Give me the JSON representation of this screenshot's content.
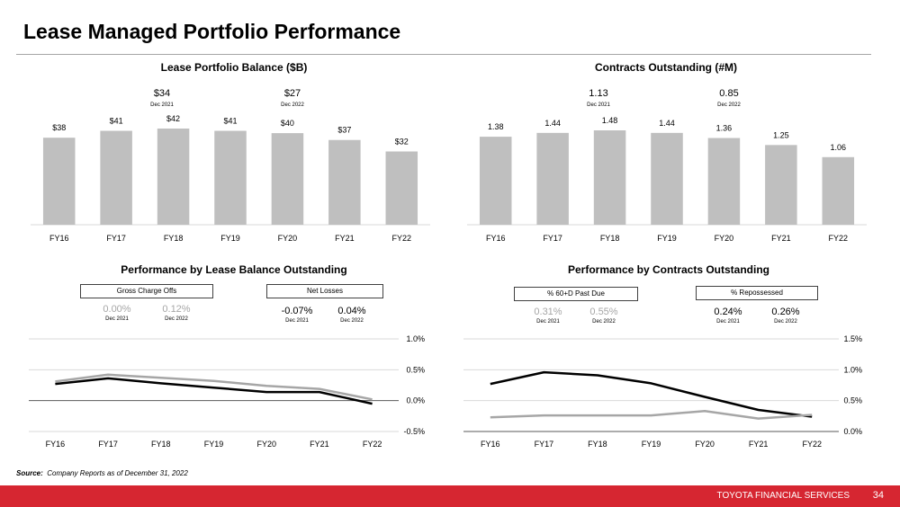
{
  "page": {
    "title": "Lease Managed Portfolio Performance",
    "source_label": "Source:",
    "source_text": "Company Reports as of December 31, 2022",
    "brand": "TOYOTA FINANCIAL SERVICES",
    "page_number": "34"
  },
  "colors": {
    "bar": "#bfbfbf",
    "line_black": "#000000",
    "line_gray": "#a6a6a6",
    "accent_red": "#d62631",
    "grid": "#d9d9d9"
  },
  "callouts": {
    "balance": [
      {
        "value": "$34",
        "period": "Dec 2021"
      },
      {
        "value": "$27",
        "period": "Dec 2022"
      }
    ],
    "contracts": [
      {
        "value": "1.13",
        "period": "Dec 2021"
      },
      {
        "value": "0.85",
        "period": "Dec 2022"
      }
    ],
    "gross_charge_offs": {
      "label": "Gross Charge Offs",
      "v2021": "0.00%",
      "p2021": "Dec 2021",
      "v2022": "0.12%",
      "p2022": "Dec 2022"
    },
    "net_losses": {
      "label": "Net Losses",
      "v2021": "-0.07%",
      "p2021": "Dec 2021",
      "v2022": "0.04%",
      "p2022": "Dec 2022"
    },
    "past_due": {
      "label": "% 60+D Past Due",
      "v2021": "0.31%",
      "p2021": "Dec 2021",
      "v2022": "0.55%",
      "p2022": "Dec 2022"
    },
    "repossessed": {
      "label": "% Repossessed",
      "v2021": "0.24%",
      "p2021": "Dec 2021",
      "v2022": "0.26%",
      "p2022": "Dec 2022"
    }
  },
  "chart_data": [
    {
      "id": "balance",
      "type": "bar",
      "title": "Lease Portfolio Balance ($B)",
      "categories": [
        "FY16",
        "FY17",
        "FY18",
        "FY19",
        "FY20",
        "FY21",
        "FY22"
      ],
      "values": [
        38,
        41,
        42,
        41,
        40,
        37,
        32
      ],
      "value_labels": [
        "$38",
        "$41",
        "$42",
        "$41",
        "$40",
        "$37",
        "$32"
      ],
      "ylim": [
        0,
        42
      ]
    },
    {
      "id": "contracts",
      "type": "bar",
      "title": "Contracts Outstanding (#M)",
      "categories": [
        "FY16",
        "FY17",
        "FY18",
        "FY19",
        "FY20",
        "FY21",
        "FY22"
      ],
      "values": [
        1.38,
        1.44,
        1.48,
        1.44,
        1.36,
        1.25,
        1.06
      ],
      "value_labels": [
        "1.38",
        "1.44",
        "1.48",
        "1.44",
        "1.36",
        "1.25",
        "1.06"
      ],
      "ylim": [
        0,
        1.48
      ]
    },
    {
      "id": "lease_perf",
      "type": "line",
      "title": "Performance by  Lease Balance Outstanding",
      "categories": [
        "FY16",
        "FY17",
        "FY18",
        "FY19",
        "FY20",
        "FY21",
        "FY22"
      ],
      "ylim": [
        -0.5,
        1.0
      ],
      "yticks": [
        "1.0%",
        "0.5%",
        "0.0%",
        "-0.5%"
      ],
      "series": [
        {
          "name": "Gross Charge Offs",
          "color": "#a6a6a6",
          "values": [
            0.31,
            0.42,
            0.37,
            0.32,
            0.24,
            0.19,
            0.02
          ]
        },
        {
          "name": "Net Losses",
          "color": "#000000",
          "values": [
            0.27,
            0.36,
            0.28,
            0.21,
            0.14,
            0.14,
            -0.05
          ]
        }
      ]
    },
    {
      "id": "contract_perf",
      "type": "line",
      "title": "Performance by  Contracts Outstanding",
      "categories": [
        "FY16",
        "FY17",
        "FY18",
        "FY19",
        "FY20",
        "FY21",
        "FY22"
      ],
      "ylim": [
        0.0,
        1.5
      ],
      "yticks": [
        "1.5%",
        "1.0%",
        "0.5%",
        "0.0%"
      ],
      "series": [
        {
          "name": "% 60+D Past Due",
          "color": "#000000",
          "values": [
            0.77,
            0.96,
            0.91,
            0.78,
            0.56,
            0.35,
            0.24
          ]
        },
        {
          "name": "% Repossessed",
          "color": "#a6a6a6",
          "values": [
            0.23,
            0.26,
            0.26,
            0.26,
            0.33,
            0.21,
            0.27
          ]
        }
      ]
    }
  ]
}
